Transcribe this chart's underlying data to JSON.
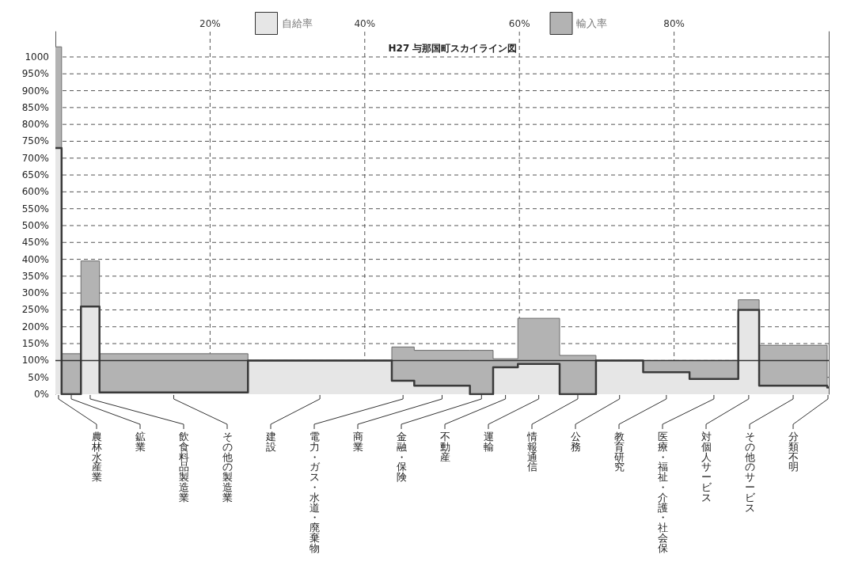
{
  "chart_data": {
    "type": "area",
    "stacked": true,
    "title": "H27 与那国町スカイライン図",
    "x": [
      0,
      0.8,
      0.8,
      3.3,
      3.3,
      5.7,
      5.7,
      24.9,
      24.9,
      43.5,
      43.5,
      46.4,
      46.4,
      53.6,
      53.6,
      56.6,
      56.6,
      59.8,
      59.8,
      65.2,
      65.2,
      69.9,
      69.9,
      76,
      76,
      82,
      82,
      88.3,
      88.3,
      91,
      91,
      99.8,
      99.8,
      100
    ],
    "series": [
      {
        "name": "自給率",
        "color": "#e6e6e6",
        "values": [
          730,
          730,
          0,
          0,
          260,
          260,
          5,
          5,
          100,
          100,
          40,
          40,
          25,
          25,
          0,
          0,
          80,
          80,
          90,
          90,
          0,
          0,
          100,
          100,
          65,
          65,
          45,
          45,
          250,
          250,
          25,
          25,
          20,
          20
        ]
      },
      {
        "name": "輸入率",
        "color": "#b3b3b3",
        "values": [
          300,
          300,
          120,
          120,
          135,
          135,
          115,
          115,
          0,
          0,
          100,
          100,
          105,
          105,
          130,
          130,
          25,
          25,
          135,
          135,
          115,
          115,
          0,
          0,
          35,
          35,
          55,
          55,
          30,
          30,
          120,
          120,
          0,
          0
        ]
      }
    ],
    "annotations": [
      "農林水産業",
      "鉱業",
      "飲食料品製造業",
      "その他の製造業",
      "建設",
      "電力・ガス・水道・廃棄物",
      "商業",
      "金融・保険",
      "不動産",
      "運輸",
      "情報通信",
      "公務",
      "教育研究",
      "医療・福祉・介護・社会保",
      "対個人サービス",
      "その他のサービス",
      "分類不明"
    ],
    "xlim": [
      0,
      100
    ],
    "xticks": [
      {
        "value": 20,
        "label": "20%"
      },
      {
        "value": 40,
        "label": "40%"
      },
      {
        "value": 60,
        "label": "60%"
      },
      {
        "value": 80,
        "label": "80%"
      }
    ],
    "ylim": [
      0,
      1075
    ],
    "yticks": [
      {
        "value": 0,
        "label": "0%"
      },
      {
        "value": 50,
        "label": "50%"
      },
      {
        "value": 100,
        "label": "100%"
      },
      {
        "value": 150,
        "label": "150%"
      },
      {
        "value": 200,
        "label": "200%"
      },
      {
        "value": 250,
        "label": "250%"
      },
      {
        "value": 300,
        "label": "300%"
      },
      {
        "value": 350,
        "label": "350%"
      },
      {
        "value": 400,
        "label": "400%"
      },
      {
        "value": 450,
        "label": "450%"
      },
      {
        "value": 500,
        "label": "500%"
      },
      {
        "value": 550,
        "label": "550%"
      },
      {
        "value": 600,
        "label": "600%"
      },
      {
        "value": 650,
        "label": "650%"
      },
      {
        "value": 700,
        "label": "700%"
      },
      {
        "value": 750,
        "label": "750%"
      },
      {
        "value": 800,
        "label": "800%"
      },
      {
        "value": 850,
        "label": "850%"
      },
      {
        "value": 900,
        "label": "900%"
      },
      {
        "value": 950,
        "label": "950%"
      },
      1000
    ],
    "ref_lines": [
      {
        "axis": "y",
        "value": 100,
        "color": "#333333"
      }
    ],
    "grid": true,
    "legend": "top"
  }
}
